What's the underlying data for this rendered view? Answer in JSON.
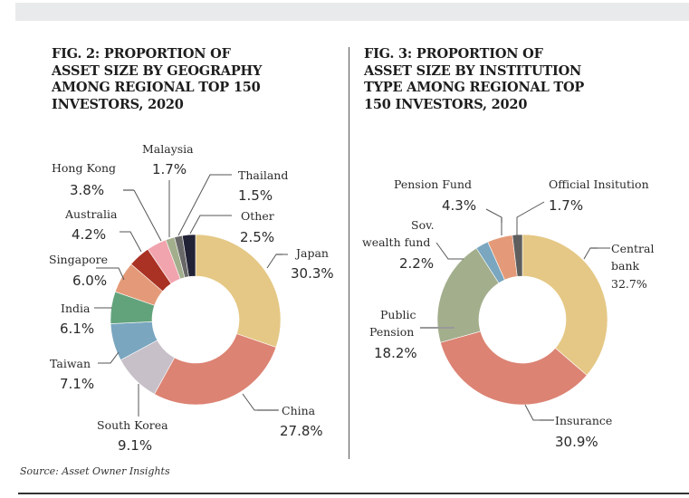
{
  "source": "Source: Asset Owner Insights",
  "chart_data": [
    {
      "type": "pie",
      "variant": "donut",
      "title_lines": [
        "FIG. 2: PROPORTION OF",
        "ASSET SIZE BY GEOGRAPHY",
        "AMONG REGIONAL TOP 150",
        "INVESTORS, 2020"
      ],
      "unit": "%",
      "slices": [
        {
          "label": "Japan",
          "value": 30.3,
          "display": "30.3%",
          "color": "#e5c885"
        },
        {
          "label": "China",
          "value": 27.8,
          "display": "27.8%",
          "color": "#dc8373"
        },
        {
          "label": "South Korea",
          "value": 9.1,
          "display": "9.1%",
          "color": "#c7c0c8"
        },
        {
          "label": "Taiwan",
          "value": 7.1,
          "display": "7.1%",
          "color": "#7aa6bf"
        },
        {
          "label": "India",
          "value": 6.1,
          "display": "6.1%",
          "color": "#62a37c"
        },
        {
          "label": "Singapore",
          "value": 6.0,
          "display": "6.0%",
          "color": "#e49a78"
        },
        {
          "label": "Australia",
          "value": 4.2,
          "display": "4.2%",
          "color": "#a93224"
        },
        {
          "label": "Hong Kong",
          "value": 3.8,
          "display": "3.8%",
          "color": "#f1a4ad"
        },
        {
          "label": "Malaysia",
          "value": 1.7,
          "display": "1.7%",
          "color": "#a2ae8c"
        },
        {
          "label": "Thailand",
          "value": 1.5,
          "display": "1.5%",
          "color": "#686868"
        },
        {
          "label": "Other",
          "value": 2.5,
          "display": "2.5%",
          "color": "#222237"
        }
      ]
    },
    {
      "type": "pie",
      "variant": "donut",
      "title_lines": [
        "FIG. 3: PROPORTION OF",
        "ASSET SIZE BY INSTITUTION",
        "TYPE AMONG REGIONAL TOP",
        "150 INVESTORS, 2020"
      ],
      "unit": "%",
      "slices": [
        {
          "label": "Central bank",
          "label_lines": [
            "Central",
            "bank"
          ],
          "value": 32.7,
          "display": "32.7%",
          "color": "#e5c885"
        },
        {
          "label": "Insurance",
          "label_lines": [
            "Insurance"
          ],
          "value": 30.9,
          "display": "30.9%",
          "color": "#dc8373"
        },
        {
          "label": "Public Pension",
          "label_lines": [
            "Public",
            "Pension"
          ],
          "value": 18.2,
          "display": "18.2%",
          "color": "#a3ae8c"
        },
        {
          "label": "Sov. wealth fund",
          "label_lines": [
            "Sov.",
            "wealth fund"
          ],
          "value": 2.2,
          "display": "2.2%",
          "color": "#7aa6bf"
        },
        {
          "label": "Pension Fund",
          "label_lines": [
            "Pension Fund"
          ],
          "value": 4.3,
          "display": "4.3%",
          "color": "#e49a78"
        },
        {
          "label": "Official Insitution",
          "label_lines": [
            "Official Insitution"
          ],
          "value": 1.7,
          "display": "1.7%",
          "color": "#5e5e5e"
        }
      ]
    }
  ]
}
